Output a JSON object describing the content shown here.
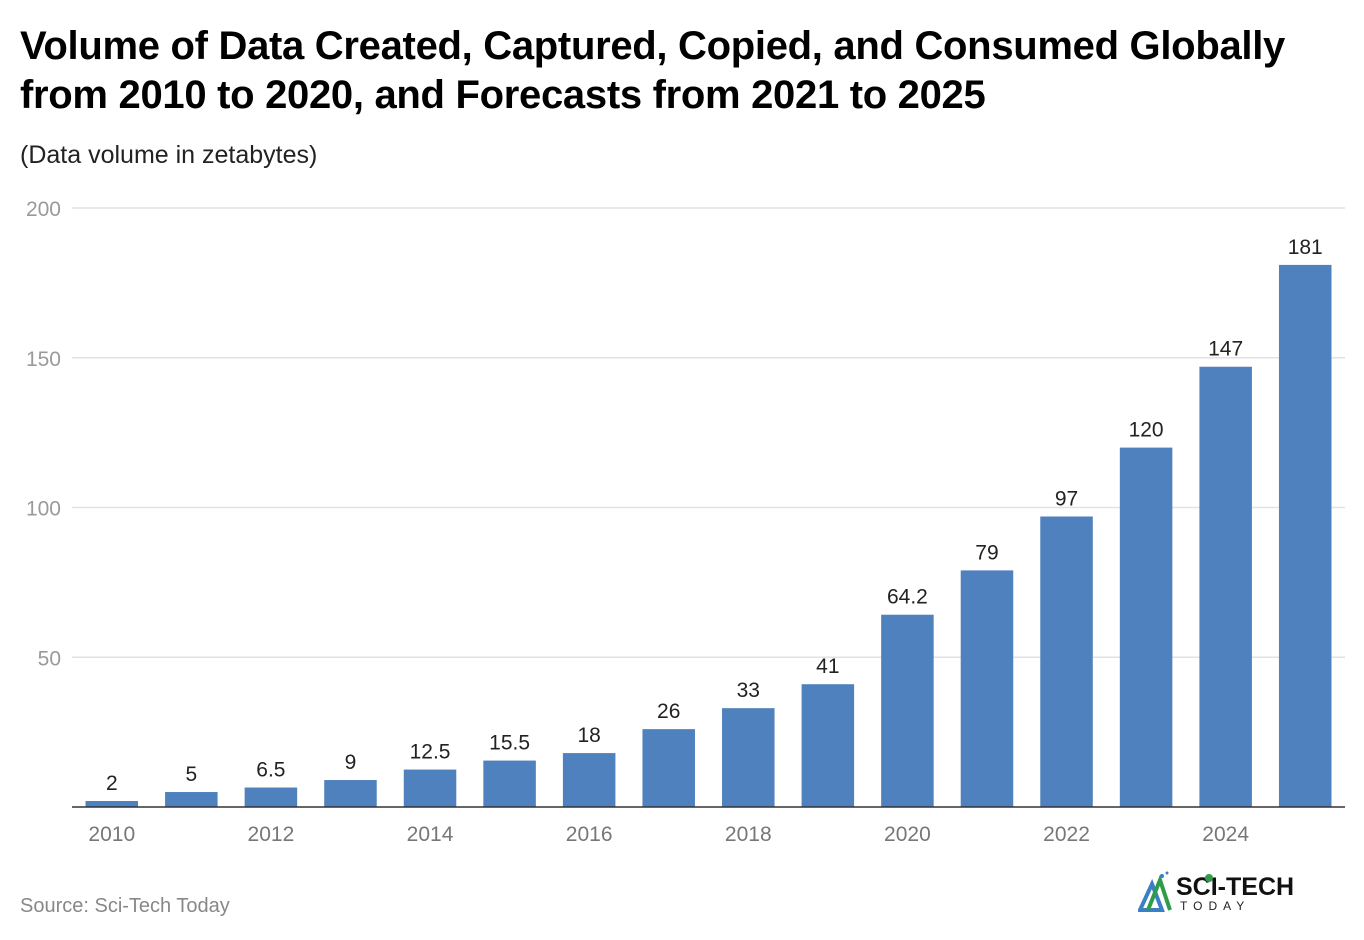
{
  "chart_data": {
    "type": "bar",
    "title": "Volume of Data Created, Captured, Copied, and Consumed Globally from 2010 to 2020, and Forecasts from 2021 to 2025",
    "subtitle": "(Data volume in zetabytes)",
    "categories": [
      "2010",
      "2011",
      "2012",
      "2013",
      "2014",
      "2015",
      "2016",
      "2017",
      "2018",
      "2019",
      "2020",
      "2021",
      "2022",
      "2023",
      "2024",
      "2025"
    ],
    "x_tick_labels": [
      "2010",
      "2012",
      "2014",
      "2016",
      "2018",
      "2020",
      "2022",
      "2024"
    ],
    "values": [
      2,
      5,
      6.5,
      9,
      12.5,
      15.5,
      18,
      26,
      33,
      41,
      64.2,
      79,
      97,
      120,
      147,
      181
    ],
    "data_labels": [
      "2",
      "5",
      "6.5",
      "9",
      "12.5",
      "15.5",
      "18",
      "26",
      "33",
      "41",
      "64.2",
      "79",
      "97",
      "120",
      "147",
      "181"
    ],
    "ylim": [
      0,
      200
    ],
    "y_ticks": [
      50,
      100,
      150,
      200
    ],
    "grid": true,
    "xlabel": "",
    "ylabel": "",
    "bar_color": "#4e81bd"
  },
  "footer": {
    "source": "Source: Sci-Tech Today",
    "logo_text": "SCI-TECH TODAY"
  }
}
